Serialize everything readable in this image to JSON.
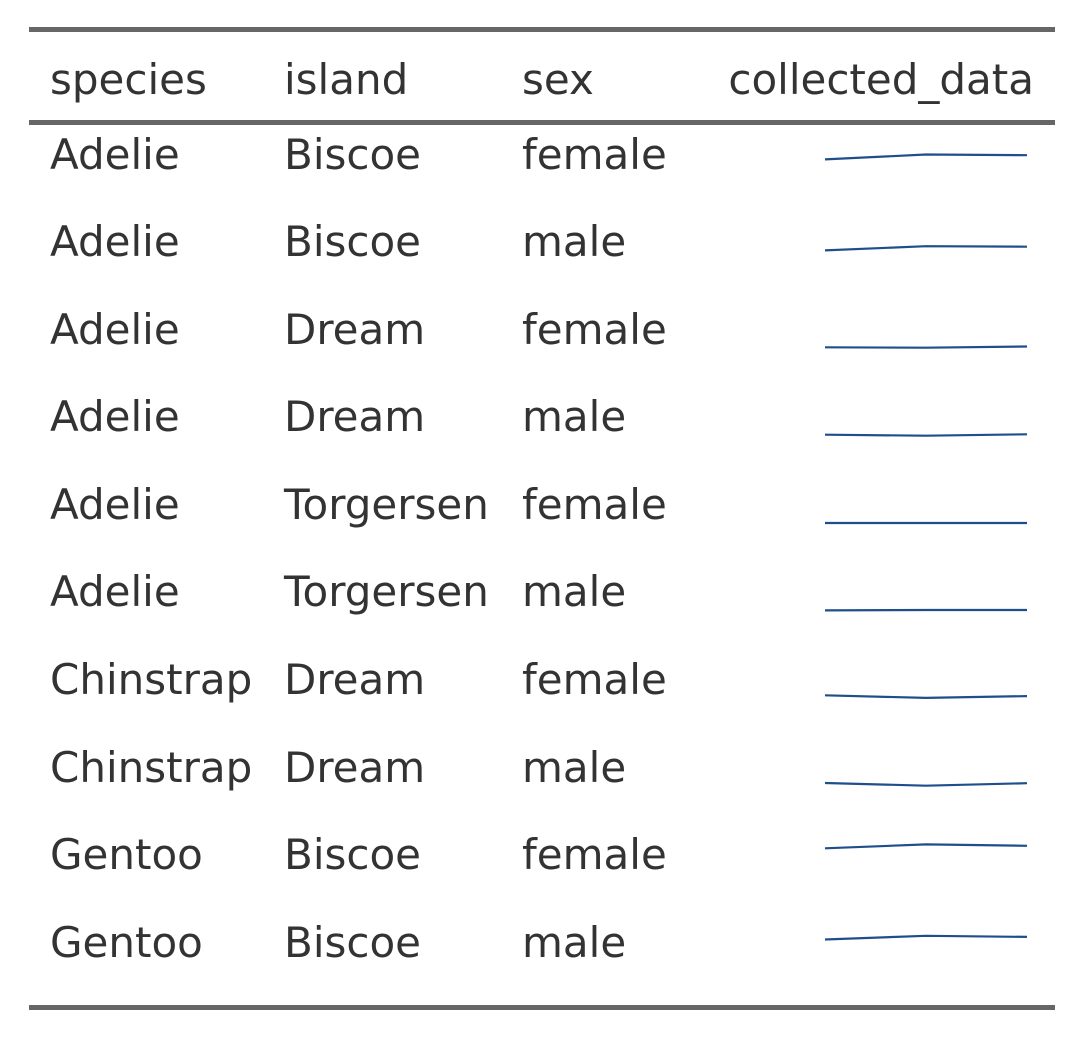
{
  "table": {
    "headers": {
      "species": "species",
      "island": "island",
      "sex": "sex",
      "collected": "collected_data"
    },
    "rows": [
      {
        "species": "Adelie",
        "island": "Biscoe",
        "sex": "female"
      },
      {
        "species": "Adelie",
        "island": "Biscoe",
        "sex": "male"
      },
      {
        "species": "Adelie",
        "island": "Dream",
        "sex": "female"
      },
      {
        "species": "Adelie",
        "island": "Dream",
        "sex": "male"
      },
      {
        "species": "Adelie",
        "island": "Torgersen",
        "sex": "female"
      },
      {
        "species": "Adelie",
        "island": "Torgersen",
        "sex": "male"
      },
      {
        "species": "Chinstrap",
        "island": "Dream",
        "sex": "female"
      },
      {
        "species": "Chinstrap",
        "island": "Dream",
        "sex": "male"
      },
      {
        "species": "Gentoo",
        "island": "Biscoe",
        "sex": "female"
      },
      {
        "species": "Gentoo",
        "island": "Biscoe",
        "sex": "male"
      }
    ]
  },
  "colors": {
    "text": "#333333",
    "rule": "#666666",
    "sparkline": "#1f4e8c"
  },
  "chart_data": {
    "type": "table",
    "columns": [
      "species",
      "island",
      "sex",
      "collected_data"
    ],
    "sparkline_type": "line",
    "sparkline_x": [
      2007,
      2008,
      2009
    ],
    "sparkline_ylim": [
      0,
      5500
    ],
    "series": [
      {
        "values": [
          4320,
          4650,
          4600
        ]
      },
      {
        "values": [
          4050,
          4330,
          4300
        ]
      },
      {
        "values": [
          3450,
          3420,
          3500
        ]
      },
      {
        "values": [
          3420,
          3350,
          3450
        ]
      },
      {
        "values": [
          3400,
          3400,
          3400
        ]
      },
      {
        "values": [
          3370,
          3400,
          3400
        ]
      },
      {
        "values": [
          3580,
          3410,
          3530
        ]
      },
      {
        "values": [
          3600,
          3420,
          3590
        ]
      },
      {
        "values": [
          5070,
          5330,
          5240
        ]
      },
      {
        "values": [
          4850,
          5100,
          5030
        ]
      }
    ]
  }
}
